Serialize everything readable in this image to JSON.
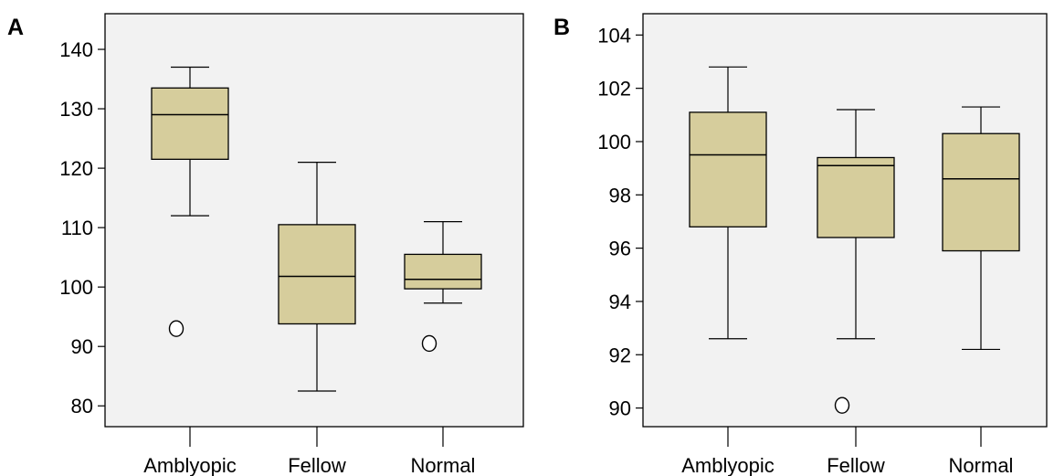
{
  "chart_data": [
    {
      "type": "box",
      "panel_label": "A",
      "title": "",
      "xlabel": "",
      "ylabel": "",
      "categories": [
        "Amblyopic",
        "Fellow",
        "Normal"
      ],
      "ylim": [
        76.5,
        146
      ],
      "y_ticks": [
        80,
        90,
        100,
        110,
        120,
        130,
        140
      ],
      "grid": false,
      "box_color": "#d6cd9c",
      "background_color": "#f2f2f2",
      "boxes": [
        {
          "category": "Amblyopic",
          "whisker_low": 112,
          "q1": 121.5,
          "median": 129,
          "q3": 133.5,
          "whisker_high": 137,
          "outliers": [
            93
          ]
        },
        {
          "category": "Fellow",
          "whisker_low": 82.5,
          "q1": 93.8,
          "median": 101.8,
          "q3": 110.5,
          "whisker_high": 121,
          "outliers": []
        },
        {
          "category": "Normal",
          "whisker_low": 97.3,
          "q1": 99.7,
          "median": 101.3,
          "q3": 105.5,
          "whisker_high": 111,
          "outliers": [
            90.5
          ]
        }
      ]
    },
    {
      "type": "box",
      "panel_label": "B",
      "title": "",
      "xlabel": "",
      "ylabel": "",
      "categories": [
        "Amblyopic",
        "Fellow",
        "Normal"
      ],
      "ylim": [
        89.3,
        104.8
      ],
      "y_ticks": [
        90,
        92,
        94,
        96,
        98,
        100,
        102,
        104
      ],
      "grid": false,
      "box_color": "#d6cd9c",
      "background_color": "#f2f2f2",
      "boxes": [
        {
          "category": "Amblyopic",
          "whisker_low": 92.6,
          "q1": 96.8,
          "median": 99.5,
          "q3": 101.1,
          "whisker_high": 102.8,
          "outliers": []
        },
        {
          "category": "Fellow",
          "whisker_low": 92.6,
          "q1": 96.4,
          "median": 99.1,
          "q3": 99.4,
          "whisker_high": 101.2,
          "outliers": [
            90.1
          ]
        },
        {
          "category": "Normal",
          "whisker_low": 92.2,
          "q1": 95.9,
          "median": 98.6,
          "q3": 100.3,
          "whisker_high": 101.3,
          "outliers": []
        }
      ]
    }
  ]
}
